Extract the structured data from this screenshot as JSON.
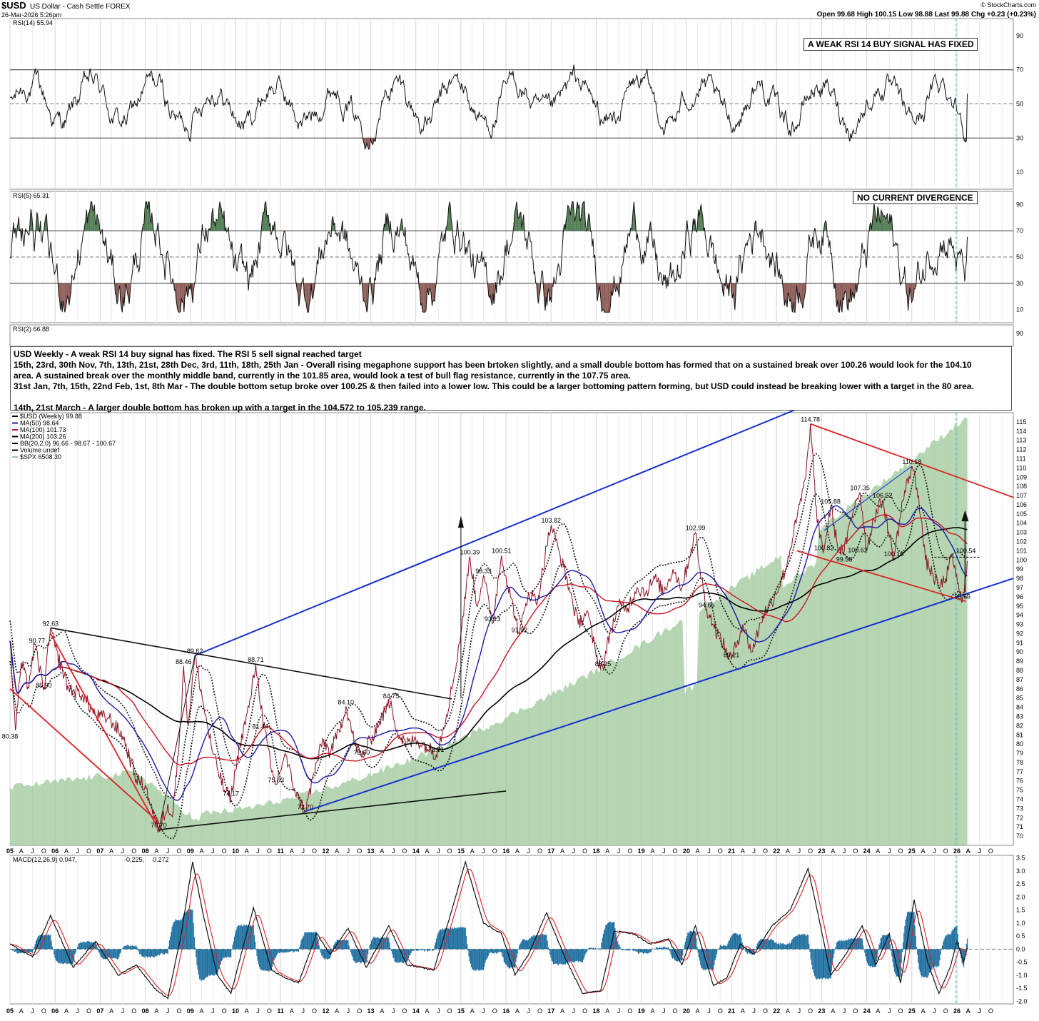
{
  "header": {
    "symbol": "$USD",
    "name": "US Dollar - Cash Settle FOREX",
    "date": "26-Mar-2026 5:26pm",
    "brand": "© StockCharts.com",
    "quote": "Open 99.68  High 100.15  Low 98.88  Last 99.88  Chg +0.23 (+0.23%)"
  },
  "callouts": {
    "rsi14": "A WEAK RSI 14 BUY SIGNAL HAS FIXED",
    "rsi5": "NO CURRENT DIVERGENCE"
  },
  "notes": [
    "USD Weekly - A weak RSI 14 buy signal has fixed. The RSI 5 sell signal reached target",
    "15th, 23rd, 30th Nov, 7th, 13th, 21st, 28th Dec, 3rd, 11th, 18th, 25th Jan - Overall rising megaphone support has been brtoken slightly, and a small double bottom has formed that on a sustained break over 100.26 would look for the 104.10",
    "area. A sustained break over the monthly middle band, currently in the 101.85 area, would look a test of bull flag resistance, currently in the 107.75 area.",
    "31st Jan, 7th, 15th, 22nd Feb, 1st, 8th Mar - The double bottom setup broke over 100.25 & then failed into a lower low. This could be a larger bottoming pattern forming, but USD could instead be breaking lower with a target in the 80 area.",
    "",
    "14th, 21st March - A larger double bottom has broken up with a target in the 104.572 to 105.239 range."
  ],
  "colors": {
    "price": "#000000",
    "ma50": "#1a1aa8",
    "ma100": "#cc1122",
    "ma200": "#000000",
    "spx": "#9cc79a",
    "overbought": "#4e7a50",
    "oversold": "#8b5a55",
    "trend_blue": "#1530d0",
    "trend_red": "#dd2222",
    "macd_hist": "#1e6fa0",
    "macd_signal": "#dd2222",
    "cursor": "#30c0d0"
  },
  "chart_data": [
    {
      "type": "line",
      "name": "RSI(14)",
      "title": "RSI(14) 55.94",
      "ylim": [
        0,
        100
      ],
      "yticks": [
        10,
        30,
        50,
        70,
        90
      ],
      "reference_lines": [
        30,
        50,
        70
      ],
      "last": 55.94
    },
    {
      "type": "line",
      "name": "RSI(5)",
      "title": "RSI(5) 65.31",
      "ylim": [
        0,
        100
      ],
      "yticks": [
        10,
        30,
        50,
        70,
        90
      ],
      "reference_lines": [
        30,
        50,
        70
      ],
      "last": 65.31
    },
    {
      "type": "line",
      "name": "RSI(2)",
      "title": "RSI(2) 66.88",
      "ylim": [
        0,
        100
      ],
      "yticks": [
        90
      ],
      "last": 66.88
    },
    {
      "type": "line",
      "name": "$USD (Weekly) 99.88",
      "legend": [
        {
          "label": "$USD (Weekly) 99.88",
          "color": "#000000"
        },
        {
          "label": "MA(50) 98.64",
          "color": "#1a1aa8"
        },
        {
          "label": "MA(100) 101.73",
          "color": "#cc1122"
        },
        {
          "label": "MA(200) 103.26",
          "color": "#000000"
        },
        {
          "label": "BB(20,2.0) 96.66 - 98.67 - 100.67",
          "color": "#000000"
        },
        {
          "label": "Volume undef",
          "color": "#000000"
        },
        {
          "label": "$SPX 6508.30",
          "color": "#9cc79a"
        }
      ],
      "ylim": [
        69,
        116
      ],
      "yticks": [
        70,
        71,
        72,
        73,
        74,
        75,
        76,
        77,
        78,
        79,
        80,
        81,
        82,
        83,
        84,
        85,
        86,
        87,
        88,
        89,
        90,
        91,
        92,
        93,
        94,
        95,
        96,
        97,
        98,
        99,
        100,
        101,
        102,
        103,
        104,
        105,
        106,
        107,
        108,
        109,
        110,
        111,
        112,
        113,
        114,
        115
      ],
      "xlim": [
        2005.0,
        2027.25
      ],
      "year_labels": [
        "05",
        "06",
        "07",
        "08",
        "09",
        "10",
        "11",
        "12",
        "13",
        "14",
        "15",
        "16",
        "17",
        "18",
        "19",
        "20",
        "21",
        "22",
        "23",
        "24",
        "25",
        "26"
      ],
      "month_labels": [
        "A",
        "J",
        "O"
      ],
      "price_path": [
        [
          2005.0,
          91.2
        ],
        [
          2005.12,
          81.5
        ],
        [
          2005.25,
          88.9
        ],
        [
          2005.4,
          86.2
        ],
        [
          2005.55,
          90.8
        ],
        [
          2005.75,
          85.9
        ],
        [
          2005.9,
          92.6
        ],
        [
          2006.0,
          90.5
        ],
        [
          2006.3,
          86.0
        ],
        [
          2006.6,
          85.4
        ],
        [
          2006.9,
          83.1
        ],
        [
          2007.2,
          82.8
        ],
        [
          2007.5,
          80.9
        ],
        [
          2007.8,
          76.2
        ],
        [
          2008.0,
          75.5
        ],
        [
          2008.2,
          72.0
        ],
        [
          2008.3,
          70.7
        ],
        [
          2008.5,
          73.5
        ],
        [
          2008.6,
          72.1
        ],
        [
          2008.75,
          80.0
        ],
        [
          2008.85,
          88.5
        ],
        [
          2008.95,
          82.0
        ],
        [
          2009.1,
          89.6
        ],
        [
          2009.3,
          84.0
        ],
        [
          2009.5,
          79.0
        ],
        [
          2009.75,
          75.0
        ],
        [
          2009.9,
          74.2
        ],
        [
          2010.1,
          80.0
        ],
        [
          2010.3,
          84.0
        ],
        [
          2010.45,
          88.7
        ],
        [
          2010.6,
          83.0
        ],
        [
          2010.8,
          77.0
        ],
        [
          2010.9,
          75.6
        ],
        [
          2011.1,
          79.0
        ],
        [
          2011.25,
          76.0
        ],
        [
          2011.4,
          74.0
        ],
        [
          2011.55,
          72.7
        ],
        [
          2011.8,
          78.0
        ],
        [
          2011.95,
          80.5
        ],
        [
          2012.1,
          79.0
        ],
        [
          2012.3,
          81.5
        ],
        [
          2012.45,
          84.1
        ],
        [
          2012.65,
          80.0
        ],
        [
          2012.8,
          78.6
        ],
        [
          2013.0,
          80.5
        ],
        [
          2013.2,
          82.5
        ],
        [
          2013.45,
          84.75
        ],
        [
          2013.6,
          81.0
        ],
        [
          2013.8,
          80.0
        ],
        [
          2014.0,
          80.5
        ],
        [
          2014.3,
          79.5
        ],
        [
          2014.45,
          78.9
        ],
        [
          2014.6,
          81.5
        ],
        [
          2014.8,
          86.0
        ],
        [
          2015.0,
          92.0
        ],
        [
          2015.2,
          100.39
        ],
        [
          2015.35,
          95.0
        ],
        [
          2015.5,
          98.3
        ],
        [
          2015.7,
          93.1
        ],
        [
          2015.9,
          100.5
        ],
        [
          2016.1,
          96.0
        ],
        [
          2016.3,
          91.9
        ],
        [
          2016.5,
          96.5
        ],
        [
          2016.7,
          95.5
        ],
        [
          2016.9,
          101.5
        ],
        [
          2017.0,
          103.8
        ],
        [
          2017.2,
          100.5
        ],
        [
          2017.4,
          97.0
        ],
        [
          2017.6,
          93.0
        ],
        [
          2017.8,
          94.5
        ],
        [
          2018.0,
          89.5
        ],
        [
          2018.15,
          88.25
        ],
        [
          2018.3,
          92.0
        ],
        [
          2018.5,
          95.0
        ],
        [
          2018.7,
          94.8
        ],
        [
          2018.9,
          97.0
        ],
        [
          2019.1,
          96.5
        ],
        [
          2019.3,
          98.0
        ],
        [
          2019.5,
          96.5
        ],
        [
          2019.7,
          99.0
        ],
        [
          2019.9,
          97.0
        ],
        [
          2020.2,
          102.99
        ],
        [
          2020.3,
          99.0
        ],
        [
          2020.45,
          94.65
        ],
        [
          2020.6,
          93.0
        ],
        [
          2020.9,
          90.0
        ],
        [
          2021.0,
          89.21
        ],
        [
          2021.25,
          93.0
        ],
        [
          2021.45,
          90.0
        ],
        [
          2021.7,
          94.0
        ],
        [
          2021.95,
          96.0
        ],
        [
          2022.2,
          99.0
        ],
        [
          2022.45,
          104.5
        ],
        [
          2022.65,
          109.0
        ],
        [
          2022.75,
          114.78
        ],
        [
          2022.9,
          104.0
        ],
        [
          2023.05,
          101.0
        ],
        [
          2023.2,
          105.88
        ],
        [
          2023.35,
          101.5
        ],
        [
          2023.5,
          100.9
        ],
        [
          2023.75,
          106.5
        ],
        [
          2023.85,
          107.35
        ],
        [
          2024.0,
          101.0
        ],
        [
          2024.15,
          104.5
        ],
        [
          2024.35,
          106.52
        ],
        [
          2024.6,
          100.16
        ],
        [
          2024.8,
          106.5
        ],
        [
          2025.0,
          110.18
        ],
        [
          2025.15,
          107.0
        ],
        [
          2025.3,
          100.0
        ],
        [
          2025.45,
          98.5
        ],
        [
          2025.6,
          97.0
        ],
        [
          2025.75,
          98.0
        ],
        [
          2025.9,
          100.5
        ],
        [
          2026.05,
          96.5
        ],
        [
          2026.12,
          95.55
        ],
        [
          2026.18,
          98.0
        ],
        [
          2026.23,
          99.88
        ]
      ],
      "price_labels": [
        {
          "x": 2005.0,
          "y": 80.38,
          "text": "80.38"
        },
        {
          "x": 2005.75,
          "y": 85.9,
          "text": "85.90"
        },
        {
          "x": 2005.6,
          "y": 90.77,
          "text": "90.77"
        },
        {
          "x": 2005.9,
          "y": 92.63,
          "text": "92.63"
        },
        {
          "x": 2008.3,
          "y": 70.7,
          "text": "70.70"
        },
        {
          "x": 2008.85,
          "y": 88.46,
          "text": "88.46"
        },
        {
          "x": 2009.1,
          "y": 89.62,
          "text": "89.62"
        },
        {
          "x": 2009.9,
          "y": 74.17,
          "text": "74.17"
        },
        {
          "x": 2010.45,
          "y": 88.71,
          "text": "88.71"
        },
        {
          "x": 2010.55,
          "y": 81.44,
          "text": "81.44"
        },
        {
          "x": 2010.9,
          "y": 75.63,
          "text": "75.63"
        },
        {
          "x": 2011.55,
          "y": 72.7,
          "text": "72.70"
        },
        {
          "x": 2012.45,
          "y": 84.1,
          "text": "84.10"
        },
        {
          "x": 2012.8,
          "y": 78.6,
          "text": "78.60"
        },
        {
          "x": 2013.45,
          "y": 84.75,
          "text": "84.75"
        },
        {
          "x": 2014.45,
          "y": 78.91,
          "text": "78.91"
        },
        {
          "x": 2015.2,
          "y": 100.39,
          "text": "100.39"
        },
        {
          "x": 2015.5,
          "y": 98.33,
          "text": "98.33"
        },
        {
          "x": 2015.7,
          "y": 93.13,
          "text": "93.13"
        },
        {
          "x": 2015.9,
          "y": 100.51,
          "text": "100.51"
        },
        {
          "x": 2016.3,
          "y": 91.92,
          "text": "91.92"
        },
        {
          "x": 2017.0,
          "y": 103.82,
          "text": "103.82"
        },
        {
          "x": 2018.15,
          "y": 88.25,
          "text": "88.25"
        },
        {
          "x": 2020.2,
          "y": 102.99,
          "text": "102.99"
        },
        {
          "x": 2020.45,
          "y": 94.65,
          "text": "94.65"
        },
        {
          "x": 2021.0,
          "y": 89.21,
          "text": "89.21"
        },
        {
          "x": 2022.75,
          "y": 114.78,
          "text": "114.78"
        },
        {
          "x": 2023.2,
          "y": 105.88,
          "text": "105.88"
        },
        {
          "x": 2023.05,
          "y": 100.82,
          "text": "100.82"
        },
        {
          "x": 2023.85,
          "y": 107.35,
          "text": "107.35"
        },
        {
          "x": 2023.5,
          "y": 99.58,
          "text": "99.58"
        },
        {
          "x": 2023.8,
          "y": 100.62,
          "text": "100.62"
        },
        {
          "x": 2024.35,
          "y": 106.52,
          "text": "106.52"
        },
        {
          "x": 2024.6,
          "y": 100.16,
          "text": "100.16"
        },
        {
          "x": 2025.0,
          "y": 110.18,
          "text": "110.18"
        },
        {
          "x": 2026.12,
          "y": 95.55,
          "text": "95.55"
        },
        {
          "x": 2026.2,
          "y": 100.54,
          "text": "100.54"
        }
      ]
    },
    {
      "type": "line",
      "name": "MACD(12,26,9)",
      "title_parts": [
        "MACD(12,26,9) 0.047,",
        "-0.225,",
        "0.272"
      ],
      "ylim": [
        -2.1,
        3.6
      ],
      "yticks": [
        -2.0,
        -1.5,
        -1.0,
        -0.5,
        0.0,
        0.5,
        1.0,
        1.5,
        2.0,
        2.5,
        3.0,
        3.5
      ],
      "macd_path": [
        [
          2005.0,
          0.2
        ],
        [
          2005.5,
          -0.3
        ],
        [
          2005.9,
          1.3
        ],
        [
          2006.4,
          -0.7
        ],
        [
          2006.9,
          0.3
        ],
        [
          2007.4,
          -1.0
        ],
        [
          2007.8,
          -0.6
        ],
        [
          2008.2,
          -1.5
        ],
        [
          2008.5,
          -1.9
        ],
        [
          2008.8,
          0.6
        ],
        [
          2009.05,
          3.35
        ],
        [
          2009.3,
          1.2
        ],
        [
          2009.6,
          -1.0
        ],
        [
          2009.9,
          -1.7
        ],
        [
          2010.4,
          1.6
        ],
        [
          2010.8,
          -0.8
        ],
        [
          2011.1,
          -1.1
        ],
        [
          2011.4,
          -1.3
        ],
        [
          2011.8,
          0.6
        ],
        [
          2012.1,
          -0.2
        ],
        [
          2012.5,
          0.8
        ],
        [
          2012.9,
          -0.7
        ],
        [
          2013.4,
          0.9
        ],
        [
          2013.8,
          -0.6
        ],
        [
          2014.4,
          -0.8
        ],
        [
          2014.8,
          1.5
        ],
        [
          2015.1,
          3.35
        ],
        [
          2015.5,
          1.0
        ],
        [
          2015.9,
          0.6
        ],
        [
          2016.2,
          -1.0
        ],
        [
          2016.5,
          -0.2
        ],
        [
          2016.9,
          1.4
        ],
        [
          2017.3,
          -0.3
        ],
        [
          2017.7,
          -1.7
        ],
        [
          2018.1,
          -1.6
        ],
        [
          2018.4,
          0.7
        ],
        [
          2018.8,
          0.6
        ],
        [
          2019.2,
          0.2
        ],
        [
          2019.6,
          0.4
        ],
        [
          2019.9,
          -0.6
        ],
        [
          2020.2,
          0.9
        ],
        [
          2020.6,
          -1.4
        ],
        [
          2020.9,
          -1.1
        ],
        [
          2021.2,
          0.2
        ],
        [
          2021.5,
          -0.2
        ],
        [
          2021.9,
          0.9
        ],
        [
          2022.3,
          1.5
        ],
        [
          2022.7,
          3.1
        ],
        [
          2022.9,
          1.5
        ],
        [
          2023.2,
          -1.0
        ],
        [
          2023.5,
          -0.3
        ],
        [
          2023.9,
          0.9
        ],
        [
          2024.2,
          -0.6
        ],
        [
          2024.5,
          0.6
        ],
        [
          2024.75,
          -1.3
        ],
        [
          2025.05,
          1.9
        ],
        [
          2025.35,
          -0.5
        ],
        [
          2025.6,
          -1.7
        ],
        [
          2025.85,
          -0.7
        ],
        [
          2026.0,
          0.3
        ],
        [
          2026.15,
          -0.5
        ],
        [
          2026.23,
          0.05
        ]
      ]
    }
  ]
}
